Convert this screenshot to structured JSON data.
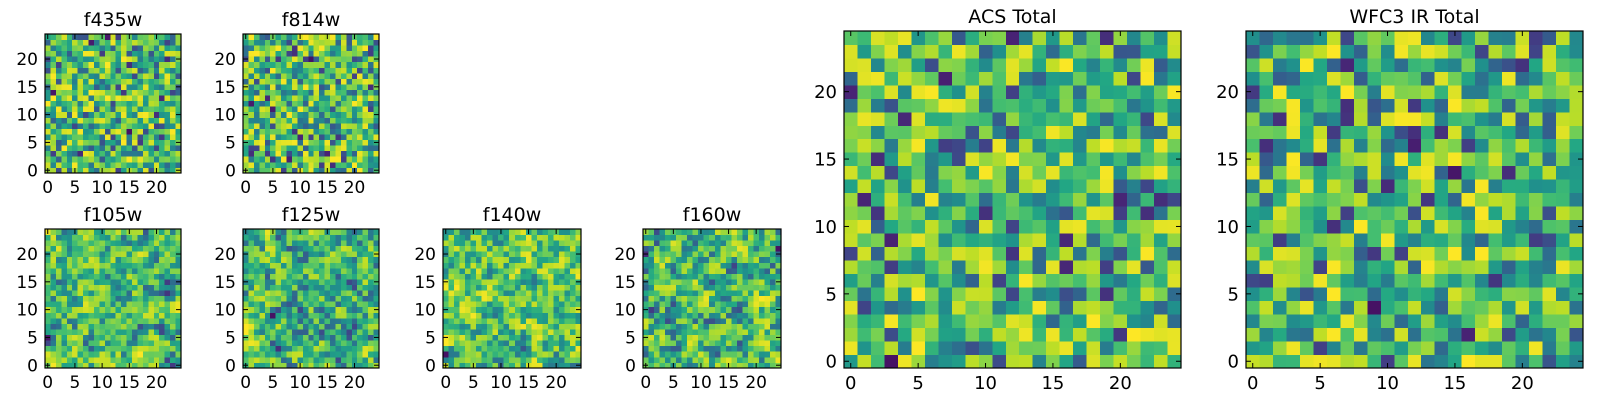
{
  "figure": {
    "colormap": "viridis",
    "colors": {
      "frame": "#000000",
      "background": "#ffffff",
      "viridis_low": "#440154",
      "viridis_mid": "#21918c",
      "viridis_high": "#fde725"
    }
  },
  "chart_data": [
    {
      "type": "heatmap",
      "title": "f435w",
      "seed": 11,
      "smooth": 0,
      "grid_size": [
        25,
        25
      ],
      "xlim": [
        -0.5,
        24.5
      ],
      "ylim": [
        -0.5,
        24.5
      ],
      "xticks": [
        0,
        5,
        10,
        15,
        20
      ],
      "yticks": [
        0,
        5,
        10,
        15,
        20
      ],
      "xtick_labels": [
        "0",
        "5",
        "10",
        "15",
        "20"
      ],
      "ytick_labels": [
        "0",
        "5",
        "10",
        "15",
        "20"
      ],
      "origin": "lower",
      "grid": false
    },
    {
      "type": "heatmap",
      "title": "f814w",
      "seed": 23,
      "smooth": 0,
      "grid_size": [
        25,
        25
      ],
      "xlim": [
        -0.5,
        24.5
      ],
      "ylim": [
        -0.5,
        24.5
      ],
      "xticks": [
        0,
        5,
        10,
        15,
        20
      ],
      "yticks": [
        0,
        5,
        10,
        15,
        20
      ],
      "xtick_labels": [
        "0",
        "5",
        "10",
        "15",
        "20"
      ],
      "ytick_labels": [
        "0",
        "5",
        "10",
        "15",
        "20"
      ],
      "origin": "lower",
      "grid": false
    },
    {
      "type": "heatmap",
      "title": "f105w",
      "seed": 37,
      "smooth": 1,
      "grid_size": [
        25,
        25
      ],
      "xlim": [
        -0.5,
        24.5
      ],
      "ylim": [
        -0.5,
        24.5
      ],
      "xticks": [
        0,
        5,
        10,
        15,
        20
      ],
      "yticks": [
        0,
        5,
        10,
        15,
        20
      ],
      "xtick_labels": [
        "0",
        "5",
        "10",
        "15",
        "20"
      ],
      "ytick_labels": [
        "0",
        "5",
        "10",
        "15",
        "20"
      ],
      "origin": "lower",
      "grid": false
    },
    {
      "type": "heatmap",
      "title": "f125w",
      "seed": 41,
      "smooth": 1,
      "grid_size": [
        25,
        25
      ],
      "xlim": [
        -0.5,
        24.5
      ],
      "ylim": [
        -0.5,
        24.5
      ],
      "xticks": [
        0,
        5,
        10,
        15,
        20
      ],
      "yticks": [
        0,
        5,
        10,
        15,
        20
      ],
      "xtick_labels": [
        "0",
        "5",
        "10",
        "15",
        "20"
      ],
      "ytick_labels": [
        "0",
        "5",
        "10",
        "15",
        "20"
      ],
      "origin": "lower",
      "grid": false
    },
    {
      "type": "heatmap",
      "title": "f140w",
      "seed": 53,
      "smooth": 1,
      "grid_size": [
        25,
        25
      ],
      "xlim": [
        -0.5,
        24.5
      ],
      "ylim": [
        -0.5,
        24.5
      ],
      "xticks": [
        0,
        5,
        10,
        15,
        20
      ],
      "yticks": [
        0,
        5,
        10,
        15,
        20
      ],
      "xtick_labels": [
        "0",
        "5",
        "10",
        "15",
        "20"
      ],
      "ytick_labels": [
        "0",
        "5",
        "10",
        "15",
        "20"
      ],
      "origin": "lower",
      "grid": false
    },
    {
      "type": "heatmap",
      "title": "f160w",
      "seed": 67,
      "smooth": 1,
      "grid_size": [
        25,
        25
      ],
      "xlim": [
        -0.5,
        24.5
      ],
      "ylim": [
        -0.5,
        24.5
      ],
      "xticks": [
        0,
        5,
        10,
        15,
        20
      ],
      "yticks": [
        0,
        5,
        10,
        15,
        20
      ],
      "xtick_labels": [
        "0",
        "5",
        "10",
        "15",
        "20"
      ],
      "ytick_labels": [
        "0",
        "5",
        "10",
        "15",
        "20"
      ],
      "origin": "lower",
      "grid": false
    },
    {
      "type": "heatmap",
      "title": "ACS Total",
      "seed": 79,
      "smooth": 0,
      "grid_size": [
        25,
        25
      ],
      "xlim": [
        -0.5,
        24.5
      ],
      "ylim": [
        -0.5,
        24.5
      ],
      "xticks": [
        0,
        5,
        10,
        15,
        20
      ],
      "yticks": [
        0,
        5,
        10,
        15,
        20
      ],
      "xtick_labels": [
        "0",
        "5",
        "10",
        "15",
        "20"
      ],
      "ytick_labels": [
        "0",
        "5",
        "10",
        "15",
        "20"
      ],
      "origin": "lower",
      "grid": false
    },
    {
      "type": "heatmap",
      "title": "WFC3 IR Total",
      "seed": 97,
      "smooth": 0,
      "grid_size": [
        25,
        25
      ],
      "xlim": [
        -0.5,
        24.5
      ],
      "ylim": [
        -0.5,
        24.5
      ],
      "xticks": [
        0,
        5,
        10,
        15,
        20
      ],
      "yticks": [
        0,
        5,
        10,
        15,
        20
      ],
      "xtick_labels": [
        "0",
        "5",
        "10",
        "15",
        "20"
      ],
      "ytick_labels": [
        "0",
        "5",
        "10",
        "15",
        "20"
      ],
      "origin": "lower",
      "grid": false
    }
  ]
}
